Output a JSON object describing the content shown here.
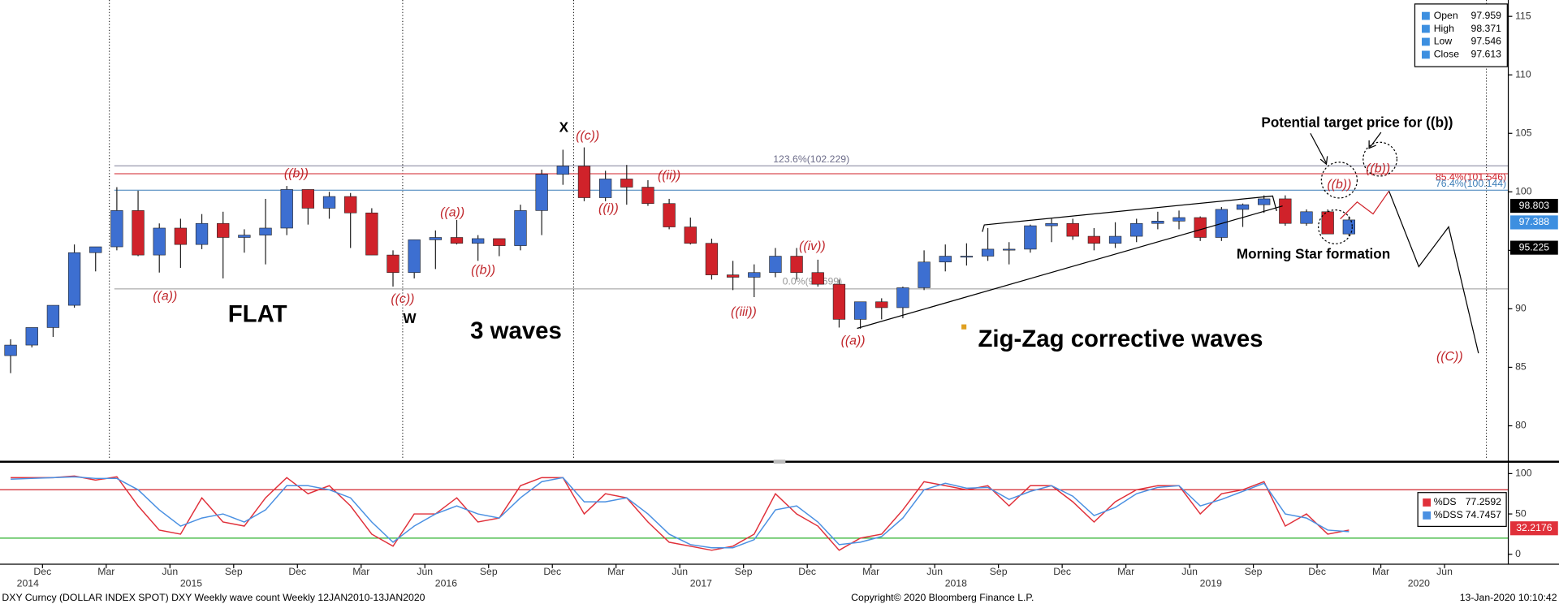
{
  "chart_data": [
    {
      "type": "candlestick",
      "x": [
        "2014-10",
        "2014-11",
        "2014-12",
        "2015-01",
        "2015-02",
        "2015-03",
        "2015-04",
        "2015-05",
        "2015-06",
        "2015-07",
        "2015-08",
        "2015-09",
        "2015-10",
        "2015-11",
        "2015-12",
        "2016-01",
        "2016-02",
        "2016-03",
        "2016-04",
        "2016-05",
        "2016-06",
        "2016-07",
        "2016-08",
        "2016-09",
        "2016-10",
        "2016-11",
        "2016-12",
        "2017-01",
        "2017-02",
        "2017-03",
        "2017-04",
        "2017-05",
        "2017-06",
        "2017-07",
        "2017-08",
        "2017-09",
        "2017-10",
        "2017-11",
        "2017-12",
        "2018-01",
        "2018-02",
        "2018-03",
        "2018-04",
        "2018-05",
        "2018-06",
        "2018-07",
        "2018-08",
        "2018-09",
        "2018-10",
        "2018-11",
        "2018-12",
        "2019-01",
        "2019-02",
        "2019-03",
        "2019-04",
        "2019-05",
        "2019-06",
        "2019-07",
        "2019-08",
        "2019-09",
        "2019-10",
        "2019-11",
        "2019-12",
        "2020-01"
      ],
      "open": [
        86.0,
        86.9,
        88.4,
        90.3,
        94.8,
        95.3,
        98.4,
        94.6,
        96.9,
        95.5,
        97.3,
        96.1,
        96.3,
        96.9,
        100.2,
        98.6,
        99.6,
        98.2,
        94.6,
        93.1,
        95.9,
        96.1,
        95.6,
        96.0,
        95.4,
        98.4,
        101.5,
        102.2,
        99.5,
        101.1,
        100.4,
        99.0,
        97.0,
        95.6,
        92.9,
        92.7,
        93.1,
        94.5,
        93.1,
        92.1,
        89.1,
        90.6,
        90.1,
        91.8,
        94.0,
        94.5,
        94.5,
        95.1,
        95.1,
        97.1,
        97.3,
        96.2,
        95.6,
        96.2,
        97.3,
        97.5,
        97.8,
        96.1,
        98.5,
        98.9,
        99.4,
        97.3,
        98.3,
        96.4
      ],
      "high": [
        87.4,
        88.4,
        90.3,
        95.5,
        95.3,
        100.4,
        100.1,
        97.3,
        97.7,
        98.1,
        98.3,
        96.8,
        99.4,
        100.5,
        100.2,
        100.0,
        99.9,
        98.6,
        95.0,
        95.9,
        96.7,
        97.6,
        96.3,
        96.0,
        98.9,
        101.9,
        103.6,
        103.8,
        101.8,
        102.3,
        101.0,
        99.4,
        97.8,
        96.0,
        94.1,
        93.8,
        95.2,
        95.2,
        94.2,
        92.5,
        90.6,
        90.9,
        91.9,
        95.0,
        95.5,
        95.6,
        96.9,
        95.7,
        97.2,
        97.7,
        97.7,
        96.9,
        97.4,
        97.7,
        98.3,
        98.4,
        97.9,
        98.7,
        99.0,
        99.7,
        99.7,
        98.5,
        98.5,
        97.9
      ],
      "low": [
        84.5,
        86.7,
        87.6,
        90.1,
        93.2,
        95.0,
        94.5,
        93.1,
        93.5,
        95.1,
        92.6,
        94.8,
        93.8,
        96.3,
        97.2,
        97.7,
        95.2,
        94.6,
        91.9,
        92.6,
        93.4,
        95.5,
        94.1,
        94.5,
        95.0,
        96.3,
        100.6,
        99.2,
        99.2,
        98.9,
        98.8,
        96.8,
        95.5,
        92.5,
        91.6,
        91.0,
        92.7,
        92.5,
        91.9,
        88.4,
        88.3,
        89.1,
        89.2,
        91.6,
        93.2,
        93.7,
        94.1,
        93.8,
        94.8,
        95.7,
        95.9,
        95.0,
        95.2,
        95.7,
        96.8,
        96.8,
        95.8,
        95.8,
        97.0,
        98.2,
        97.1,
        97.1,
        96.4,
        96.2
      ],
      "close": [
        86.9,
        88.4,
        90.3,
        94.8,
        95.3,
        98.4,
        94.6,
        96.9,
        95.5,
        97.3,
        96.1,
        96.3,
        96.9,
        100.2,
        98.6,
        99.6,
        98.2,
        94.6,
        93.1,
        95.9,
        96.1,
        95.6,
        96.0,
        95.4,
        98.4,
        101.5,
        102.2,
        99.5,
        101.1,
        100.4,
        99.0,
        97.0,
        95.6,
        92.9,
        92.7,
        93.1,
        94.5,
        93.1,
        92.1,
        89.1,
        90.6,
        90.1,
        91.8,
        94.0,
        94.5,
        94.5,
        95.1,
        95.1,
        97.1,
        97.3,
        96.2,
        95.6,
        96.2,
        97.3,
        97.5,
        97.8,
        96.1,
        98.5,
        98.9,
        99.4,
        97.3,
        98.3,
        96.4,
        97.6
      ],
      "up_color": "#3d6fd1",
      "down_color": "#d0222a",
      "xlim": [
        "2014-10",
        "2020-09"
      ],
      "xticks": [
        {
          "value": "2014-12",
          "label": "Dec"
        },
        {
          "value": "2015-03",
          "label": "Mar"
        },
        {
          "value": "2015-06",
          "label": "Jun"
        },
        {
          "value": "2015-09",
          "label": "Sep"
        },
        {
          "value": "2015-12",
          "label": "Dec"
        },
        {
          "value": "2016-03",
          "label": "Mar"
        },
        {
          "value": "2016-06",
          "label": "Jun"
        },
        {
          "value": "2016-09",
          "label": "Sep"
        },
        {
          "value": "2016-12",
          "label": "Dec"
        },
        {
          "value": "2017-03",
          "label": "Mar"
        },
        {
          "value": "2017-06",
          "label": "Jun"
        },
        {
          "value": "2017-09",
          "label": "Sep"
        },
        {
          "value": "2017-12",
          "label": "Dec"
        },
        {
          "value": "2018-03",
          "label": "Mar"
        },
        {
          "value": "2018-06",
          "label": "Jun"
        },
        {
          "value": "2018-09",
          "label": "Sep"
        },
        {
          "value": "2018-12",
          "label": "Dec"
        },
        {
          "value": "2019-03",
          "label": "Mar"
        },
        {
          "value": "2019-06",
          "label": "Jun"
        },
        {
          "value": "2019-09",
          "label": "Sep"
        },
        {
          "value": "2019-12",
          "label": "Dec"
        },
        {
          "value": "2020-03",
          "label": "Mar"
        },
        {
          "value": "2020-06",
          "label": "Jun"
        }
      ],
      "years": [
        "2014",
        "2015",
        "2016",
        "2017",
        "2018",
        "2019",
        "2020"
      ],
      "ylim": [
        77.1,
        116.4
      ],
      "yticks": [
        80,
        85,
        90,
        95,
        100,
        105,
        110,
        115
      ],
      "legend": [
        {
          "name": "Open",
          "value": 97.959
        },
        {
          "name": "High",
          "value": 98.371
        },
        {
          "name": "Low",
          "value": 97.546
        },
        {
          "name": "Close",
          "value": 97.613
        }
      ],
      "price_tags": [
        {
          "value": 98.803,
          "color": "#000000"
        },
        {
          "value": 97.388,
          "color": "#3d8fe0"
        },
        {
          "value": 95.225,
          "color": "#000000"
        }
      ],
      "fib_lines": [
        {
          "value": 102.229,
          "label": "123.6%(102.229)",
          "color": "#6d6d8a"
        },
        {
          "value": 101.546,
          "label": "85.4%(101.546)",
          "color": "#d0222a"
        },
        {
          "value": 100.144,
          "label": "76.4%(100.144)",
          "color": "#3d7fb8"
        },
        {
          "value": 91.699,
          "label": "0.0%(91.699)",
          "color": "#999999"
        }
      ],
      "annotations": [
        "X",
        "((c))",
        "((b))",
        "((a))",
        "FLAT",
        "((c))",
        "W",
        "((a))",
        "((b))",
        "3 waves",
        "((ii))",
        "((i))",
        "((iii))",
        "((iv))",
        "((a))",
        "Zig-Zag corrective waves",
        "Potential target price for ((b))",
        "((b))",
        "((b))",
        "Morning Star formation",
        "((C))"
      ]
    },
    {
      "type": "line",
      "ylim": [
        -12.3,
        112.3
      ],
      "yticks": [
        0,
        50,
        100
      ],
      "ref_lines": [
        {
          "value": 80,
          "color": "#d0222a"
        },
        {
          "value": 20,
          "color": "#2bb02b"
        }
      ],
      "series": [
        {
          "name": "%DS",
          "color": "#e0303a",
          "legend_value": 77.2592,
          "values": [
            95,
            95,
            95,
            97,
            92,
            96,
            60,
            30,
            25,
            70,
            40,
            35,
            70,
            95,
            75,
            85,
            60,
            25,
            10,
            50,
            50,
            70,
            40,
            45,
            85,
            95,
            95,
            50,
            75,
            70,
            40,
            15,
            10,
            5,
            10,
            25,
            75,
            50,
            35,
            5,
            20,
            25,
            55,
            90,
            85,
            80,
            85,
            60,
            85,
            85,
            65,
            40,
            65,
            80,
            85,
            85,
            50,
            75,
            80,
            90,
            35,
            50,
            25,
            30
          ]
        },
        {
          "name": "%DSS",
          "color": "#4a90e2",
          "legend_value": 74.7457,
          "values": [
            93,
            94,
            95,
            96,
            94,
            94,
            80,
            55,
            35,
            45,
            50,
            40,
            55,
            85,
            85,
            80,
            70,
            40,
            15,
            35,
            50,
            60,
            50,
            45,
            70,
            90,
            95,
            65,
            65,
            70,
            50,
            25,
            12,
            8,
            8,
            18,
            55,
            60,
            40,
            12,
            15,
            22,
            45,
            80,
            88,
            82,
            83,
            68,
            78,
            85,
            72,
            48,
            58,
            75,
            83,
            85,
            60,
            68,
            78,
            88,
            50,
            45,
            30,
            28
          ]
        }
      ],
      "price_tags": [
        {
          "value": 32.2176,
          "color": "#e0303a"
        }
      ]
    }
  ],
  "footer": {
    "left": "DXY Curncy (DOLLAR INDEX SPOT) DXY Weekly wave count  Weekly 12JAN2010-13JAN2020",
    "center": "Copyright© 2020 Bloomberg Finance L.P.",
    "right": "13-Jan-2020 10:10:42"
  }
}
